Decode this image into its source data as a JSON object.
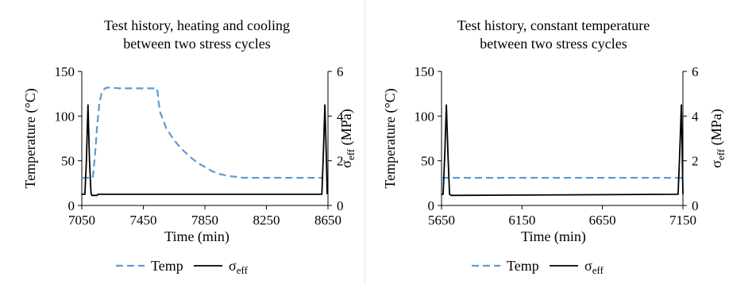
{
  "chart_data": [
    {
      "type": "line",
      "title": [
        "Test history, heating and cooling",
        "between two stress cycles"
      ],
      "xlabel": "Time (min)",
      "ylabel": "Temperature (°C)",
      "y2label": "σ_eff (MPa)",
      "xlim": [
        7050,
        8650
      ],
      "xticks": [
        7050,
        7450,
        7850,
        8250,
        8650
      ],
      "ylim": [
        0,
        150
      ],
      "yticks": [
        0,
        50,
        100,
        150
      ],
      "y2lim": [
        0,
        6
      ],
      "y2ticks": [
        0,
        2,
        4,
        6
      ],
      "grid": false,
      "legend_position": "bottom",
      "series": [
        {
          "name": "Temp",
          "axis": "left",
          "color": "#5b9bd5",
          "dash": "dashed",
          "x": [
            7050,
            7120,
            7122,
            7135,
            7150,
            7165,
            7180,
            7200,
            7220,
            7300,
            7400,
            7540,
            7545,
            7550,
            7560,
            7580,
            7600,
            7650,
            7700,
            7750,
            7800,
            7850,
            7900,
            7950,
            8000,
            8050,
            8100,
            8300,
            8500,
            8620
          ],
          "y": [
            31,
            31,
            32,
            55,
            90,
            115,
            127,
            131,
            132,
            131,
            131,
            131,
            123,
            114,
            104,
            95,
            86,
            73,
            63,
            55,
            48,
            43,
            38,
            35,
            33,
            32,
            31,
            31,
            31,
            31
          ]
        },
        {
          "name": "σ_eff",
          "axis": "right",
          "color": "#000000",
          "dash": "solid",
          "x": [
            7050,
            7070,
            7080,
            7090,
            7100,
            7110,
            7115,
            7130,
            7150,
            7155,
            7160,
            8600,
            8610,
            8620,
            8630,
            8640,
            8645
          ],
          "y": [
            0.5,
            0.5,
            2.0,
            4.5,
            2.0,
            0.55,
            0.45,
            0.45,
            0.45,
            0.5,
            0.5,
            0.5,
            0.5,
            2.3,
            4.5,
            2.0,
            0.5
          ]
        }
      ]
    },
    {
      "type": "line",
      "title": [
        "Test history, constant temperature",
        "between two stress cycles"
      ],
      "xlabel": "Time (min)",
      "ylabel": "Temperature (°C)",
      "y2label": "σ_eff (MPa)",
      "xlim": [
        5650,
        7150
      ],
      "xticks": [
        5650,
        6150,
        6650,
        7150
      ],
      "ylim": [
        0,
        150
      ],
      "yticks": [
        0,
        50,
        100,
        150
      ],
      "y2lim": [
        0,
        6
      ],
      "y2ticks": [
        0,
        2,
        4,
        6
      ],
      "grid": false,
      "legend_position": "bottom",
      "series": [
        {
          "name": "Temp",
          "axis": "left",
          "color": "#5b9bd5",
          "dash": "dashed",
          "x": [
            5650,
            7150
          ],
          "y": [
            31,
            31
          ]
        },
        {
          "name": "σ_eff",
          "axis": "right",
          "color": "#000000",
          "dash": "solid",
          "x": [
            5650,
            5660,
            5670,
            5680,
            5690,
            5700,
            5710,
            7120,
            7130,
            7140,
            7150
          ],
          "y": [
            0.5,
            0.5,
            2.3,
            4.5,
            2.3,
            0.5,
            0.45,
            0.5,
            2.3,
            4.5,
            0.5
          ]
        }
      ]
    }
  ]
}
